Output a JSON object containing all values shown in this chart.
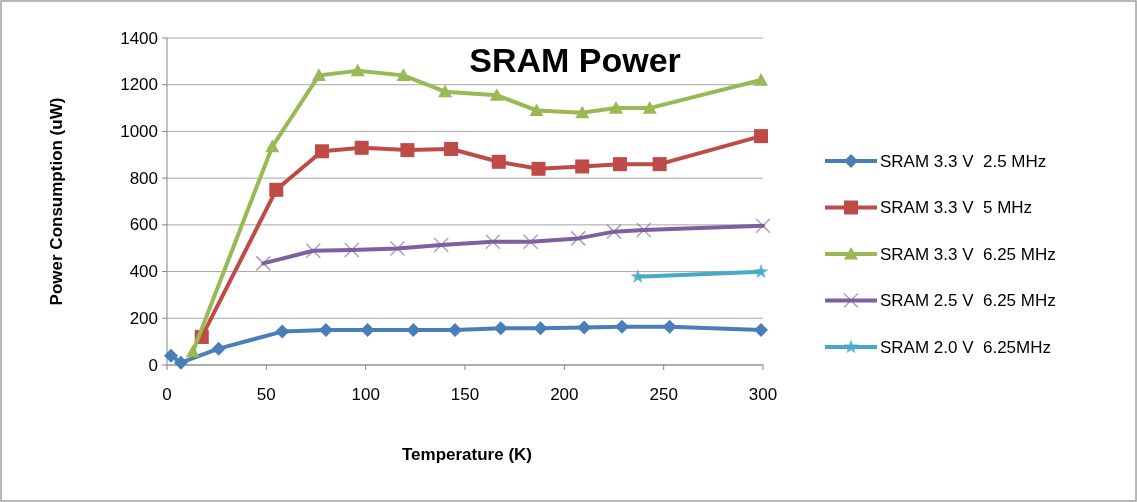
{
  "chart_data": {
    "type": "line",
    "title": "SRAM Power",
    "xlabel": "Temperature (K)",
    "ylabel": "Power Consumption (uW)",
    "xlim": [
      0,
      300
    ],
    "xticks": [
      0,
      50,
      100,
      150,
      200,
      250,
      300
    ],
    "ylim": [
      0,
      1400
    ],
    "yticks": [
      0,
      200,
      400,
      600,
      800,
      1000,
      1200,
      1400
    ],
    "grid": "y",
    "legend": "right",
    "series": [
      {
        "name": "SRAM 3.3 V  2.5 MHz",
        "color": "#4a7ebb",
        "marker": "diamond",
        "x": [
          2,
          7,
          26,
          58,
          80,
          101,
          124,
          145,
          168,
          188,
          210,
          229,
          253,
          299
        ],
        "values": [
          40,
          10,
          70,
          143,
          150,
          150,
          150,
          150,
          157,
          157,
          161,
          164,
          164,
          150
        ]
      },
      {
        "name": "SRAM 3.3 V  5 MHz",
        "color": "#be4b48",
        "marker": "square",
        "x": [
          17.5,
          55,
          78,
          98,
          121,
          143,
          167,
          187,
          209,
          228,
          248,
          299
        ],
        "values": [
          120,
          750,
          915,
          930,
          920,
          925,
          870,
          840,
          850,
          860,
          860,
          980
        ]
      },
      {
        "name": "SRAM 3.3 V  6.25 MHz",
        "color": "#98b954",
        "marker": "triangle",
        "x": [
          13,
          53,
          76.5,
          96,
          119,
          140,
          166,
          186,
          209,
          226,
          243,
          299
        ],
        "values": [
          57,
          935,
          1240,
          1260,
          1240,
          1170,
          1155,
          1090,
          1080,
          1100,
          1100,
          1220
        ]
      },
      {
        "name": "SRAM 2.5 V  6.25 MHz",
        "color": "#7d60a0",
        "marker": "cross",
        "x": [
          48.5,
          73.6,
          93,
          116,
          138,
          164,
          183,
          207,
          225,
          240,
          300
        ],
        "values": [
          435,
          489,
          492,
          499,
          514,
          528,
          528,
          542,
          571,
          578,
          596
        ]
      },
      {
        "name": "SRAM 2.0 V  6.25MHz",
        "color": "#46aac5",
        "marker": "star",
        "x": [
          237,
          299
        ],
        "values": [
          378,
          399
        ]
      }
    ]
  }
}
